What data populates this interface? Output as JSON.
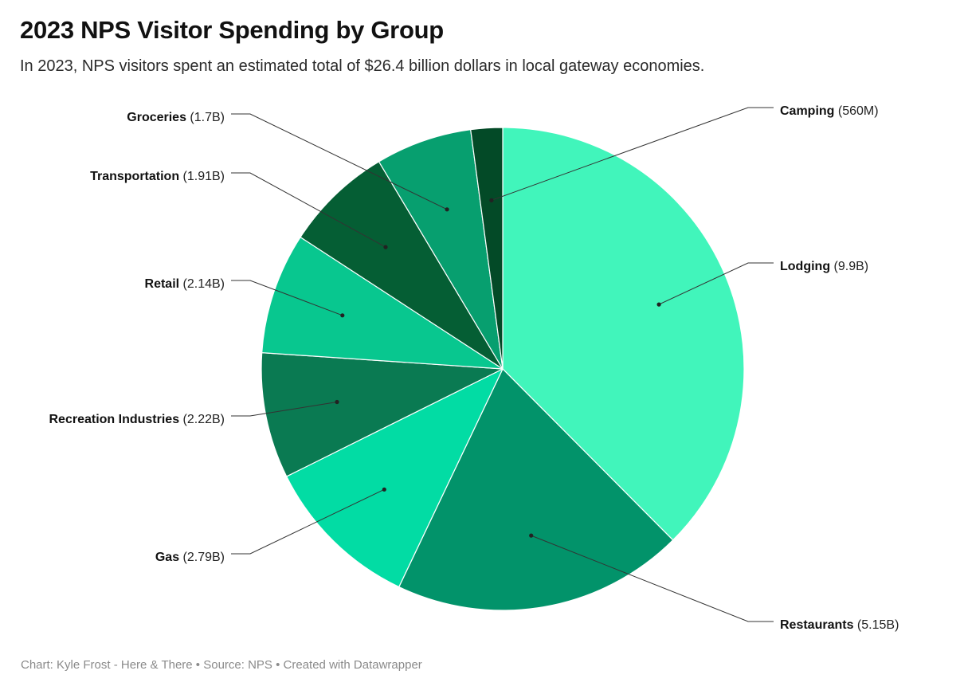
{
  "title": "2023 NPS Visitor Spending by Group",
  "subtitle": "In 2023, NPS visitors spent an estimated total of $26.4 billion dollars in local gateway economies.",
  "footer": {
    "chart_by": "Chart: Kyle Frost - Here & There",
    "separator": " • ",
    "source": "Source: NPS",
    "created_with": "Created with Datawrapper"
  },
  "chart_data": {
    "type": "pie",
    "title": "2023 NPS Visitor Spending by Group",
    "slices": [
      {
        "name": "Lodging",
        "value": 9.9,
        "value_label": "(9.9B)",
        "color": "#41f5bb"
      },
      {
        "name": "Restaurants",
        "value": 5.15,
        "value_label": "(5.15B)",
        "color": "#02936a"
      },
      {
        "name": "Gas",
        "value": 2.79,
        "value_label": "(2.79B)",
        "color": "#02dca4"
      },
      {
        "name": "Recreation Industries",
        "value": 2.22,
        "value_label": "(2.22B)",
        "color": "#0a7a52"
      },
      {
        "name": "Retail",
        "value": 2.14,
        "value_label": "(2.14B)",
        "color": "#08c78f"
      },
      {
        "name": "Transportation",
        "value": 1.91,
        "value_label": "(1.91B)",
        "color": "#055e34"
      },
      {
        "name": "Groceries",
        "value": 1.7,
        "value_label": "(1.7B)",
        "color": "#079f6f"
      },
      {
        "name": "Camping",
        "value": 0.56,
        "value_label": "(560M)",
        "color": "#034a27"
      }
    ],
    "units": "USD billions",
    "legend": "none",
    "labels": "outside with leader lines"
  }
}
